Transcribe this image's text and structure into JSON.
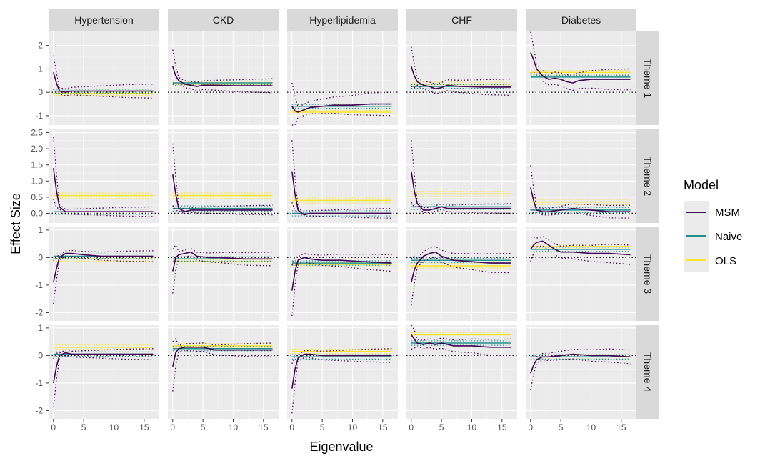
{
  "chart_data": {
    "type": "line",
    "facets": {
      "columns": [
        "Hypertension",
        "CKD",
        "Hyperlipidemia",
        "CHF",
        "Diabetes"
      ],
      "rows": [
        "Theme 1",
        "Theme 2",
        "Theme 3",
        "Theme 4"
      ],
      "row_ylims": [
        [
          -1.4,
          2.6
        ],
        [
          -0.3,
          2.6
        ],
        [
          -2.3,
          1.1
        ],
        [
          -2.3,
          1.1
        ]
      ],
      "row_yticks": [
        [
          -1,
          0,
          1,
          2
        ],
        [
          0.0,
          0.5,
          1.0,
          1.5,
          2.0,
          2.5
        ],
        [
          -2,
          -1,
          0,
          1
        ],
        [
          -2,
          -1,
          0,
          1
        ]
      ],
      "row_yticklabels": [
        [
          "-1",
          "0",
          "1",
          "2"
        ],
        [
          "0.0",
          "0.5",
          "1.0",
          "1.5",
          "2.0",
          "2.5"
        ],
        [
          "-2",
          "-1",
          "0",
          "1"
        ],
        [
          "-2",
          "-1",
          "0",
          "1"
        ]
      ]
    },
    "xlabel": "Eigenvalue",
    "ylabel": "Effect Size",
    "xlim": [
      -0.8,
      17.5
    ],
    "xticks": [
      0,
      5,
      10,
      15
    ],
    "xticklabels": [
      "0",
      "5",
      "10",
      "15"
    ],
    "reference_line_y": 0,
    "legend": {
      "title": "Model",
      "position": "right",
      "entries": [
        {
          "name": "MSM",
          "color": "#440154"
        },
        {
          "name": "Naive",
          "color": "#21908C"
        },
        {
          "name": "OLS",
          "color": "#FDE725"
        }
      ]
    },
    "panels": [
      [
        {
          "naive": 0.05,
          "ols": -0.05,
          "msm": [
            [
              0,
              0.85
            ],
            [
              0.5,
              0.4
            ],
            [
              1,
              0.05
            ],
            [
              2,
              0.0
            ],
            [
              3,
              0.05
            ],
            [
              5,
              0.05
            ],
            [
              8,
              0.05
            ],
            [
              12,
              0.05
            ],
            [
              16.5,
              0.05
            ]
          ],
          "band": 0.3,
          "spike": 0.6
        },
        {
          "naive": 0.4,
          "ols": 0.35,
          "msm": [
            [
              0,
              1.1
            ],
            [
              0.5,
              0.7
            ],
            [
              1,
              0.5
            ],
            [
              2,
              0.35
            ],
            [
              3,
              0.3
            ],
            [
              4,
              0.25
            ],
            [
              5,
              0.3
            ],
            [
              7,
              0.3
            ],
            [
              10,
              0.28
            ],
            [
              16.5,
              0.28
            ]
          ],
          "band": 0.3,
          "spike": 0.6
        },
        {
          "naive": -0.6,
          "ols": -0.85,
          "msm": [
            [
              0,
              -0.6
            ],
            [
              0.5,
              -0.8
            ],
            [
              1,
              -0.85
            ],
            [
              2,
              -0.75
            ],
            [
              3,
              -0.65
            ],
            [
              5,
              -0.6
            ],
            [
              7,
              -0.55
            ],
            [
              10,
              -0.55
            ],
            [
              13,
              -0.5
            ],
            [
              16.5,
              -0.5
            ]
          ],
          "band": 0.5,
          "spike": 0.8
        },
        {
          "naive": 0.25,
          "ols": 0.35,
          "msm": [
            [
              0,
              1.1
            ],
            [
              0.5,
              0.7
            ],
            [
              1,
              0.45
            ],
            [
              2,
              0.3
            ],
            [
              3,
              0.25
            ],
            [
              4,
              0.15
            ],
            [
              5,
              0.2
            ],
            [
              6,
              0.3
            ],
            [
              8,
              0.25
            ],
            [
              12,
              0.22
            ],
            [
              16.5,
              0.22
            ]
          ],
          "band": 0.35,
          "spike": 0.7
        },
        {
          "naive": 0.65,
          "ols": 0.85,
          "msm": [
            [
              0,
              1.7
            ],
            [
              0.5,
              1.4
            ],
            [
              1,
              1.0
            ],
            [
              2,
              0.7
            ],
            [
              3,
              0.55
            ],
            [
              4,
              0.6
            ],
            [
              5,
              0.55
            ],
            [
              6,
              0.45
            ],
            [
              7,
              0.4
            ],
            [
              8,
              0.5
            ],
            [
              10,
              0.55
            ],
            [
              13,
              0.55
            ],
            [
              16.5,
              0.55
            ]
          ],
          "band": 0.45,
          "spike": 0.7
        }
      ],
      [
        {
          "naive": 0.05,
          "ols": 0.55,
          "msm": [
            [
              0,
              1.4
            ],
            [
              0.5,
              0.7
            ],
            [
              1,
              0.2
            ],
            [
              2,
              0.05
            ],
            [
              3,
              0.05
            ],
            [
              5,
              0.05
            ],
            [
              8,
              0.05
            ],
            [
              12,
              0.05
            ],
            [
              16.5,
              0.05
            ]
          ],
          "band": 0.15,
          "spike": 0.9
        },
        {
          "naive": 0.15,
          "ols": 0.55,
          "msm": [
            [
              0,
              1.2
            ],
            [
              0.5,
              0.6
            ],
            [
              1,
              0.15
            ],
            [
              2,
              0.05
            ],
            [
              3,
              0.1
            ],
            [
              5,
              0.1
            ],
            [
              8,
              0.1
            ],
            [
              12,
              0.1
            ],
            [
              16.5,
              0.1
            ]
          ],
          "band": 0.15,
          "spike": 0.9
        },
        {
          "naive": 0.0,
          "ols": 0.4,
          "msm": [
            [
              0,
              1.3
            ],
            [
              0.5,
              0.6
            ],
            [
              1,
              0.1
            ],
            [
              2,
              -0.05
            ],
            [
              3,
              0.0
            ],
            [
              5,
              0.0
            ],
            [
              8,
              0.0
            ],
            [
              12,
              0.0
            ],
            [
              16.5,
              0.0
            ]
          ],
          "band": 0.15,
          "spike": 0.9
        },
        {
          "naive": 0.2,
          "ols": 0.6,
          "msm": [
            [
              0,
              1.3
            ],
            [
              0.5,
              0.7
            ],
            [
              1,
              0.3
            ],
            [
              2,
              0.1
            ],
            [
              3,
              0.1
            ],
            [
              4,
              0.15
            ],
            [
              5,
              0.2
            ],
            [
              6,
              0.15
            ],
            [
              8,
              0.15
            ],
            [
              12,
              0.15
            ],
            [
              16.5,
              0.15
            ]
          ],
          "band": 0.15,
          "spike": 0.9
        },
        {
          "naive": 0.1,
          "ols": 0.35,
          "msm": [
            [
              0,
              0.8
            ],
            [
              0.5,
              0.4
            ],
            [
              1,
              0.1
            ],
            [
              2,
              0.05
            ],
            [
              3,
              0.05
            ],
            [
              5,
              0.1
            ],
            [
              7,
              0.15
            ],
            [
              10,
              0.1
            ],
            [
              13,
              0.05
            ],
            [
              16.5,
              0.05
            ]
          ],
          "band": 0.2,
          "spike": 0.6
        }
      ],
      [
        {
          "naive": 0.05,
          "ols": -0.05,
          "msm": [
            [
              0,
              -0.9
            ],
            [
              0.5,
              -0.4
            ],
            [
              1,
              0.0
            ],
            [
              2,
              0.15
            ],
            [
              3,
              0.15
            ],
            [
              5,
              0.1
            ],
            [
              8,
              0.05
            ],
            [
              12,
              0.05
            ],
            [
              16.5,
              0.05
            ]
          ],
          "band": 0.2,
          "spike": 0.7
        },
        {
          "naive": -0.05,
          "ols": -0.15,
          "msm": [
            [
              0,
              -0.5
            ],
            [
              0.5,
              0.0
            ],
            [
              1,
              0.1
            ],
            [
              2,
              0.15
            ],
            [
              3,
              0.2
            ],
            [
              4,
              0.05
            ],
            [
              6,
              0.0
            ],
            [
              8,
              0.0
            ],
            [
              12,
              -0.05
            ],
            [
              16.5,
              -0.05
            ]
          ],
          "band": 0.25,
          "spike": 0.7
        },
        {
          "naive": -0.2,
          "ols": -0.25,
          "msm": [
            [
              0,
              -1.2
            ],
            [
              0.5,
              -0.5
            ],
            [
              1,
              -0.1
            ],
            [
              2,
              0.0
            ],
            [
              3,
              -0.05
            ],
            [
              5,
              -0.1
            ],
            [
              8,
              -0.1
            ],
            [
              12,
              -0.15
            ],
            [
              16.5,
              -0.2
            ]
          ],
          "band": 0.3,
          "spike": 0.8
        },
        {
          "naive": -0.1,
          "ols": -0.3,
          "msm": [
            [
              0,
              -0.9
            ],
            [
              0.5,
              -0.45
            ],
            [
              1,
              -0.2
            ],
            [
              2,
              0.05
            ],
            [
              3,
              0.15
            ],
            [
              4,
              0.2
            ],
            [
              5,
              0.05
            ],
            [
              7,
              -0.1
            ],
            [
              10,
              -0.15
            ],
            [
              13,
              -0.2
            ],
            [
              16.5,
              -0.2
            ]
          ],
          "band": 0.35,
          "spike": 0.7
        },
        {
          "naive": 0.3,
          "ols": 0.4,
          "msm": [
            [
              0,
              0.3
            ],
            [
              0.5,
              0.45
            ],
            [
              1,
              0.55
            ],
            [
              2,
              0.6
            ],
            [
              3,
              0.45
            ],
            [
              4,
              0.3
            ],
            [
              5,
              0.2
            ],
            [
              7,
              0.2
            ],
            [
              10,
              0.15
            ],
            [
              13,
              0.15
            ],
            [
              16.5,
              0.1
            ]
          ],
          "band": 0.35,
          "spike": 0.3
        }
      ],
      [
        {
          "naive": 0.05,
          "ols": 0.3,
          "msm": [
            [
              0,
              -1.0
            ],
            [
              0.5,
              -0.4
            ],
            [
              1,
              0.0
            ],
            [
              2,
              0.1
            ],
            [
              3,
              0.05
            ],
            [
              5,
              0.05
            ],
            [
              8,
              0.05
            ],
            [
              12,
              0.05
            ],
            [
              16.5,
              0.05
            ]
          ],
          "band": 0.2,
          "spike": 0.8
        },
        {
          "naive": 0.25,
          "ols": 0.35,
          "msm": [
            [
              0,
              -0.4
            ],
            [
              0.5,
              0.1
            ],
            [
              1,
              0.25
            ],
            [
              2,
              0.3
            ],
            [
              3,
              0.3
            ],
            [
              5,
              0.3
            ],
            [
              7,
              0.2
            ],
            [
              10,
              0.2
            ],
            [
              13,
              0.2
            ],
            [
              16.5,
              0.2
            ]
          ],
          "band": 0.25,
          "spike": 0.8
        },
        {
          "naive": -0.05,
          "ols": 0.15,
          "msm": [
            [
              0,
              -1.2
            ],
            [
              0.5,
              -0.5
            ],
            [
              1,
              -0.1
            ],
            [
              2,
              0.05
            ],
            [
              3,
              0.05
            ],
            [
              5,
              0.0
            ],
            [
              8,
              0.0
            ],
            [
              12,
              0.0
            ],
            [
              16.5,
              0.0
            ]
          ],
          "band": 0.25,
          "spike": 0.8
        },
        {
          "naive": 0.45,
          "ols": 0.75,
          "msm": [
            [
              0,
              0.75
            ],
            [
              0.5,
              0.6
            ],
            [
              1,
              0.45
            ],
            [
              2,
              0.4
            ],
            [
              3,
              0.45
            ],
            [
              4,
              0.4
            ],
            [
              5,
              0.45
            ],
            [
              7,
              0.35
            ],
            [
              10,
              0.35
            ],
            [
              13,
              0.3
            ],
            [
              16.5,
              0.3
            ]
          ],
          "band": 0.3,
          "spike": 0.4
        },
        {
          "naive": -0.05,
          "ols": -0.05,
          "msm": [
            [
              0,
              -0.65
            ],
            [
              0.5,
              -0.35
            ],
            [
              1,
              -0.15
            ],
            [
              2,
              -0.05
            ],
            [
              3,
              -0.05
            ],
            [
              5,
              0.0
            ],
            [
              7,
              0.05
            ],
            [
              10,
              0.0
            ],
            [
              13,
              0.0
            ],
            [
              16.5,
              -0.05
            ]
          ],
          "band": 0.25,
          "spike": 0.5
        }
      ]
    ]
  }
}
